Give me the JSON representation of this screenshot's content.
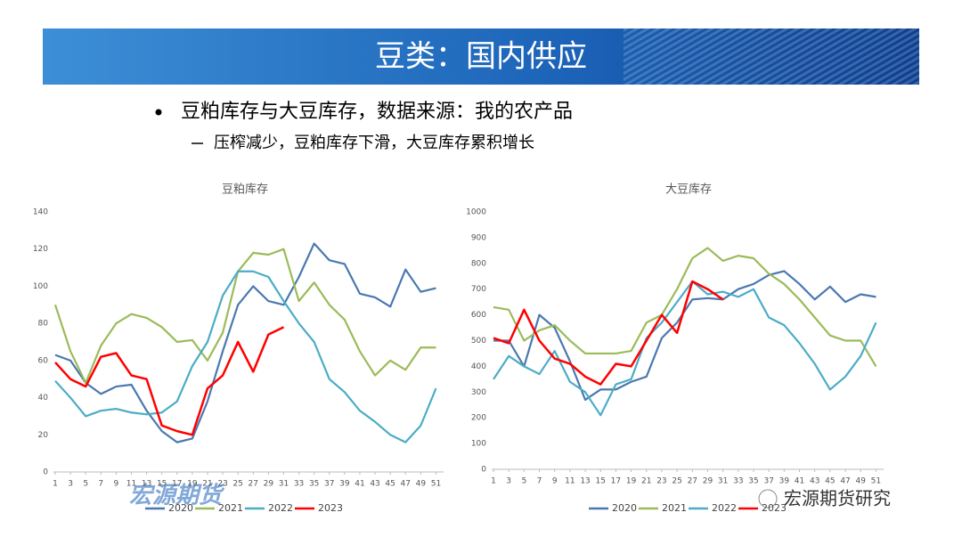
{
  "slide": {
    "title": "豆类：国内供应",
    "bullet": "豆粕库存与大豆库存，数据来源：我的农产品",
    "sub_bullet": "压榨减少，豆粕库存下滑，大豆库存累积增长",
    "logo": "宏源期货",
    "wechat": "宏源期货研究"
  },
  "chart_data": [
    {
      "type": "line",
      "title": "豆粕库存",
      "x": [
        1,
        3,
        5,
        7,
        9,
        11,
        13,
        15,
        17,
        19,
        21,
        23,
        25,
        27,
        29,
        31,
        33,
        35,
        37,
        39,
        41,
        43,
        45,
        47,
        49,
        51
      ],
      "xlim": [
        1,
        52
      ],
      "xticks": [
        1,
        3,
        5,
        7,
        9,
        11,
        13,
        15,
        17,
        19,
        21,
        23,
        25,
        27,
        29,
        31,
        33,
        35,
        37,
        39,
        41,
        43,
        45,
        47,
        49,
        51
      ],
      "ylim": [
        0,
        140
      ],
      "yticks": [
        0,
        20,
        40,
        60,
        80,
        100,
        120,
        140
      ],
      "series": [
        {
          "name": "2020",
          "color": "#4a78b0",
          "values": [
            63,
            60,
            48,
            42,
            46,
            47,
            33,
            22,
            16,
            18,
            38,
            65,
            90,
            100,
            92,
            90,
            105,
            123,
            114,
            112,
            96,
            94,
            89,
            109,
            97,
            99
          ]
        },
        {
          "name": "2021",
          "color": "#9bbb59",
          "values": [
            90,
            65,
            48,
            68,
            80,
            85,
            83,
            78,
            70,
            71,
            60,
            75,
            108,
            118,
            117,
            120,
            92,
            102,
            90,
            82,
            65,
            52,
            60,
            55,
            67,
            67
          ]
        },
        {
          "name": "2022",
          "color": "#4bacc6",
          "values": [
            49,
            40,
            30,
            33,
            34,
            32,
            31,
            32,
            38,
            57,
            70,
            95,
            108,
            108,
            105,
            92,
            80,
            70,
            50,
            43,
            33,
            27,
            20,
            16,
            25,
            45
          ]
        },
        {
          "name": "2023",
          "color": "#ff0000",
          "values": [
            59,
            50,
            46,
            62,
            64,
            52,
            50,
            25,
            22,
            20,
            45,
            52,
            70,
            54,
            74,
            78,
            null,
            null,
            null,
            null,
            null,
            null,
            null,
            null,
            null,
            null
          ]
        }
      ]
    },
    {
      "type": "line",
      "title": "大豆库存",
      "x": [
        1,
        3,
        5,
        7,
        9,
        11,
        13,
        15,
        17,
        19,
        21,
        23,
        25,
        27,
        29,
        31,
        33,
        35,
        37,
        39,
        41,
        43,
        45,
        47,
        49,
        51
      ],
      "xlim": [
        1,
        52
      ],
      "xticks": [
        1,
        3,
        5,
        7,
        9,
        11,
        13,
        15,
        17,
        19,
        21,
        23,
        25,
        27,
        29,
        31,
        33,
        35,
        37,
        39,
        41,
        43,
        45,
        47,
        49,
        51
      ],
      "ylim": [
        0,
        1000
      ],
      "yticks": [
        0,
        100,
        200,
        300,
        400,
        500,
        600,
        700,
        800,
        900,
        1000
      ],
      "series": [
        {
          "name": "2020",
          "color": "#4a78b0",
          "values": [
            500,
            500,
            400,
            600,
            550,
            420,
            270,
            310,
            310,
            340,
            360,
            510,
            570,
            660,
            665,
            660,
            700,
            720,
            755,
            770,
            720,
            660,
            710,
            650,
            680,
            670
          ]
        },
        {
          "name": "2021",
          "color": "#9bbb59",
          "values": [
            630,
            620,
            500,
            540,
            560,
            500,
            450,
            450,
            450,
            460,
            570,
            600,
            700,
            820,
            860,
            810,
            830,
            820,
            760,
            720,
            660,
            590,
            520,
            500,
            500,
            400
          ]
        },
        {
          "name": "2022",
          "color": "#4bacc6",
          "values": [
            350,
            440,
            400,
            370,
            460,
            340,
            300,
            210,
            330,
            350,
            510,
            570,
            650,
            730,
            680,
            690,
            670,
            700,
            590,
            560,
            490,
            410,
            310,
            360,
            440,
            570
          ]
        },
        {
          "name": "2023",
          "color": "#ff0000",
          "values": [
            510,
            490,
            620,
            500,
            430,
            410,
            360,
            330,
            410,
            400,
            500,
            600,
            530,
            730,
            700,
            660,
            null,
            null,
            null,
            null,
            null,
            null,
            null,
            null,
            null,
            null
          ]
        }
      ]
    }
  ]
}
